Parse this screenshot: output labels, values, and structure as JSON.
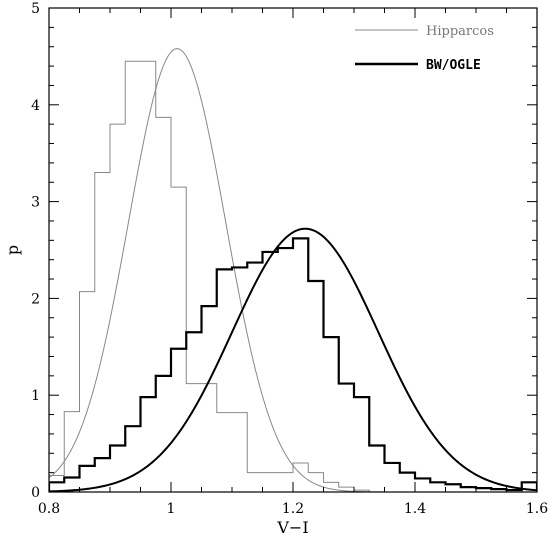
{
  "chart_data": {
    "type": "line",
    "xlabel": "V−I",
    "ylabel": "p",
    "xlim": [
      0.8,
      1.6
    ],
    "ylim": [
      0,
      5
    ],
    "xticks": [
      0.8,
      1.0,
      1.2,
      1.4,
      1.6
    ],
    "xtick_labels": [
      "0.8",
      "1",
      "1.2",
      "1.4",
      "1.6"
    ],
    "yticks": [
      0,
      1,
      2,
      3,
      4,
      5
    ],
    "ytick_labels": [
      "0",
      "1",
      "2",
      "3",
      "4",
      "5"
    ],
    "legend_position": "top-right",
    "grid": false,
    "series": [
      {
        "name": "Hipparcos",
        "color": "#888888",
        "hist_edges": [
          0.775,
          0.825,
          0.85,
          0.875,
          0.9,
          0.925,
          0.95,
          0.975,
          1.0,
          1.025,
          1.05,
          1.075,
          1.1,
          1.125,
          1.15,
          1.175,
          1.2,
          1.225,
          1.25,
          1.275,
          1.3,
          1.325,
          1.35
        ],
        "hist_values": [
          0.17,
          0.83,
          2.07,
          3.3,
          3.8,
          4.45,
          4.45,
          3.87,
          3.15,
          1.12,
          1.12,
          0.82,
          0.82,
          0.2,
          0.2,
          0.2,
          0.3,
          0.2,
          0.1,
          0.05,
          0.02,
          0.0
        ],
        "gaussian": {
          "mean": 1.01,
          "sigma": 0.08,
          "peak": 4.58
        }
      },
      {
        "name": "BW/OGLE",
        "color": "#000000",
        "hist_edges": [
          0.775,
          0.825,
          0.85,
          0.875,
          0.9,
          0.925,
          0.95,
          0.975,
          1.0,
          1.025,
          1.05,
          1.075,
          1.1,
          1.125,
          1.15,
          1.175,
          1.2,
          1.225,
          1.25,
          1.275,
          1.3,
          1.325,
          1.35,
          1.375,
          1.4,
          1.425,
          1.45,
          1.475,
          1.5,
          1.525,
          1.55,
          1.575,
          1.6
        ],
        "hist_values": [
          0.1,
          0.15,
          0.27,
          0.35,
          0.48,
          0.68,
          0.98,
          1.2,
          1.48,
          1.65,
          1.92,
          2.3,
          2.32,
          2.37,
          2.48,
          2.52,
          2.62,
          2.18,
          1.6,
          1.12,
          0.98,
          0.48,
          0.3,
          0.2,
          0.14,
          0.1,
          0.08,
          0.05,
          0.04,
          0.03,
          0.02,
          0.1
        ],
        "gaussian": {
          "mean": 1.22,
          "sigma": 0.12,
          "peak": 2.72
        }
      }
    ]
  }
}
